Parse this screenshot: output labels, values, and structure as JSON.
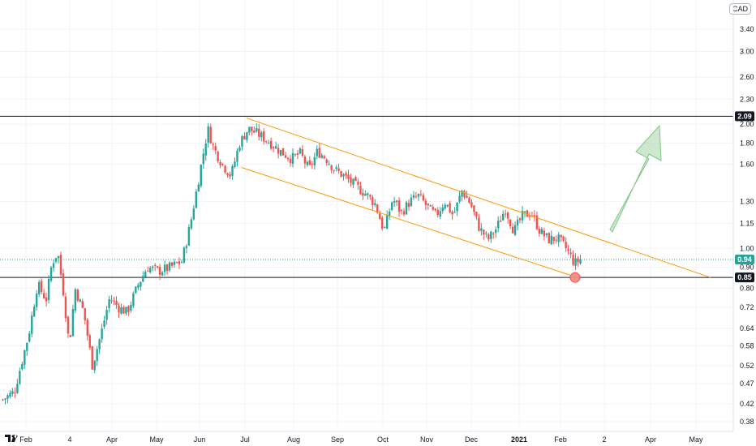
{
  "currency": "CAD",
  "chart_data": {
    "type": "candlestick",
    "y_scale": "log",
    "ylim": [
      0.36,
      4.0
    ],
    "y_ticks": [
      "3.40",
      "3.00",
      "2.60",
      "2.30",
      "2.00",
      "1.80",
      "1.60",
      "1.30",
      "1.15",
      "1.00",
      "0.90",
      "0.80",
      "0.72",
      "0.64",
      "0.58",
      "0.52",
      "0.47",
      "0.42",
      "0.38"
    ],
    "x_ticks": [
      {
        "label": "Feb",
        "bold": false
      },
      {
        "label": "4",
        "bold": false
      },
      {
        "label": "Apr",
        "bold": false
      },
      {
        "label": "May",
        "bold": false
      },
      {
        "label": "Jun",
        "bold": false
      },
      {
        "label": "Jul",
        "bold": false
      },
      {
        "label": "Aug",
        "bold": false
      },
      {
        "label": "Sep",
        "bold": false
      },
      {
        "label": "Oct",
        "bold": false
      },
      {
        "label": "Nov",
        "bold": false
      },
      {
        "label": "Dec",
        "bold": false
      },
      {
        "label": "2021",
        "bold": true
      },
      {
        "label": "Feb",
        "bold": false
      },
      {
        "label": "2",
        "bold": false
      },
      {
        "label": "Apr",
        "bold": false
      },
      {
        "label": "May",
        "bold": false
      }
    ],
    "horizontal_levels": [
      {
        "value": 2.09,
        "label": "2.09",
        "color": "#131722"
      },
      {
        "value": 0.85,
        "label": "0.85",
        "color": "#131722"
      }
    ],
    "last_price": {
      "value": 0.94,
      "label": "0.94",
      "color": "#26a69a"
    },
    "close_path": [
      [
        0,
        0.43
      ],
      [
        0.02,
        0.45
      ],
      [
        0.045,
        0.62
      ],
      [
        0.06,
        0.82
      ],
      [
        0.075,
        0.75
      ],
      [
        0.085,
        0.92
      ],
      [
        0.095,
        0.98
      ],
      [
        0.105,
        0.78
      ],
      [
        0.115,
        0.58
      ],
      [
        0.125,
        0.8
      ],
      [
        0.14,
        0.7
      ],
      [
        0.155,
        0.52
      ],
      [
        0.17,
        0.62
      ],
      [
        0.185,
        0.76
      ],
      [
        0.2,
        0.72
      ],
      [
        0.215,
        0.7
      ],
      [
        0.235,
        0.82
      ],
      [
        0.25,
        0.9
      ],
      [
        0.27,
        0.88
      ],
      [
        0.29,
        0.9
      ],
      [
        0.31,
        0.93
      ],
      [
        0.325,
        1.15
      ],
      [
        0.34,
        1.5
      ],
      [
        0.355,
        1.95
      ],
      [
        0.365,
        1.75
      ],
      [
        0.38,
        1.6
      ],
      [
        0.395,
        1.5
      ],
      [
        0.41,
        1.8
      ],
      [
        0.425,
        1.95
      ],
      [
        0.44,
        1.9
      ],
      [
        0.46,
        1.82
      ],
      [
        0.48,
        1.72
      ],
      [
        0.5,
        1.65
      ],
      [
        0.515,
        1.7
      ],
      [
        0.53,
        1.55
      ],
      [
        0.545,
        1.72
      ],
      [
        0.56,
        1.65
      ],
      [
        0.575,
        1.55
      ],
      [
        0.59,
        1.5
      ],
      [
        0.61,
        1.42
      ],
      [
        0.63,
        1.35
      ],
      [
        0.645,
        1.28
      ],
      [
        0.66,
        1.1
      ],
      [
        0.675,
        1.32
      ],
      [
        0.69,
        1.22
      ],
      [
        0.705,
        1.3
      ],
      [
        0.72,
        1.34
      ],
      [
        0.735,
        1.26
      ],
      [
        0.75,
        1.2
      ],
      [
        0.765,
        1.3
      ],
      [
        0.78,
        1.2
      ],
      [
        0.795,
        1.38
      ],
      [
        0.81,
        1.28
      ],
      [
        0.825,
        1.12
      ],
      [
        0.84,
        1.05
      ],
      [
        0.855,
        1.12
      ],
      [
        0.87,
        1.25
      ],
      [
        0.885,
        1.1
      ],
      [
        0.9,
        1.2
      ],
      [
        0.915,
        1.22
      ],
      [
        0.93,
        1.1
      ],
      [
        0.945,
        1.05
      ],
      [
        0.96,
        1.06
      ],
      [
        0.975,
        1.0
      ],
      [
        0.99,
        0.92
      ],
      [
        1.0,
        0.94
      ]
    ]
  }
}
